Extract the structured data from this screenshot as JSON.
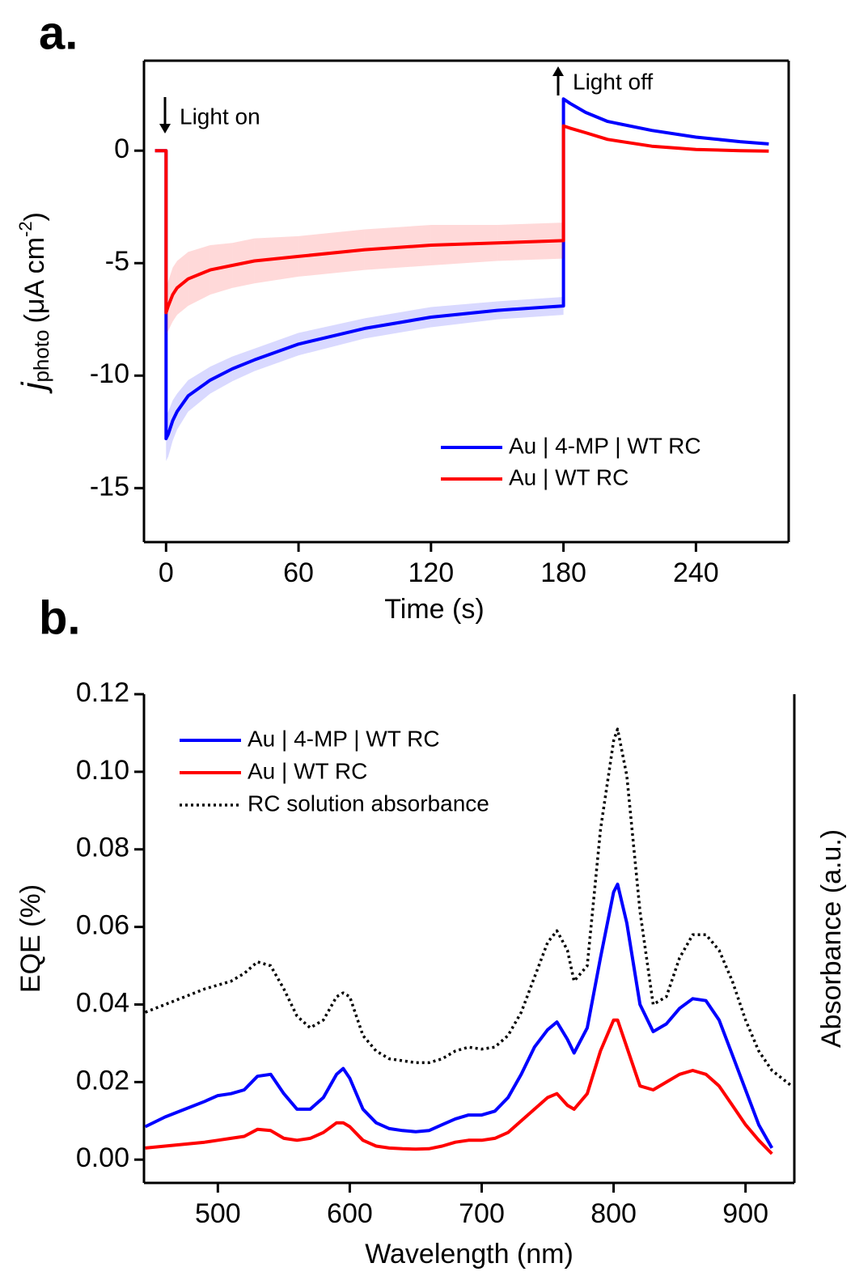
{
  "chart_data": [
    {
      "type": "line",
      "panel_label": "a.",
      "xlabel": "Time (s)",
      "ylabel": {
        "italic": "j",
        "sub": "photo",
        "text": "(μA cm",
        "sup": "-2",
        "close": ")"
      },
      "annotations": [
        "Light on",
        "Light off"
      ],
      "x": [
        -5,
        -2,
        0,
        0,
        1,
        3,
        5,
        10,
        20,
        30,
        40,
        60,
        90,
        120,
        150,
        180,
        180,
        183,
        190,
        200,
        220,
        240,
        260,
        273
      ],
      "series": [
        {
          "name": "Au | 4-MP | WT RC",
          "color": "#0000ff",
          "values": [
            0,
            0,
            0,
            -12.8,
            -12.6,
            -12.0,
            -11.6,
            -10.9,
            -10.2,
            -9.7,
            -9.3,
            -8.6,
            -7.9,
            -7.4,
            -7.1,
            -6.9,
            2.3,
            2.1,
            1.7,
            1.3,
            0.9,
            0.6,
            0.4,
            0.3
          ],
          "errors": [
            null,
            null,
            null,
            1.0,
            1.0,
            0.9,
            0.8,
            0.7,
            0.6,
            0.55,
            0.5,
            0.5,
            0.45,
            0.45,
            0.4,
            0.4,
            null,
            null,
            null,
            null,
            null,
            null,
            null,
            null
          ]
        },
        {
          "name": "Au | WT RC",
          "color": "#ff0000",
          "values": [
            0,
            0,
            0,
            -7.2,
            -6.9,
            -6.4,
            -6.1,
            -5.7,
            -5.3,
            -5.1,
            -4.9,
            -4.7,
            -4.4,
            -4.2,
            -4.1,
            -4.0,
            1.1,
            1.0,
            0.8,
            0.5,
            0.2,
            0.05,
            0.0,
            -0.02
          ],
          "errors": [
            null,
            null,
            null,
            1.0,
            1.1,
            1.2,
            1.2,
            1.2,
            1.1,
            1.0,
            1.0,
            0.9,
            0.9,
            0.9,
            0.8,
            0.8,
            null,
            null,
            null,
            null,
            null,
            null,
            null,
            null
          ]
        }
      ],
      "xlim": [
        -10,
        282
      ],
      "ylim": [
        -17.4,
        4
      ],
      "xticks": [
        0,
        60,
        120,
        180,
        240
      ],
      "yticks": [
        -15,
        -10,
        -5,
        0
      ],
      "box": true
    },
    {
      "type": "line",
      "panel_label": "b.",
      "xlabel": "Wavelength (nm)",
      "ylabel": "EQE (%)",
      "y2label": "Absorbance (a.u.)",
      "x": [
        445,
        460,
        475,
        490,
        500,
        510,
        520,
        530,
        540,
        550,
        560,
        570,
        580,
        590,
        595,
        600,
        610,
        620,
        630,
        640,
        650,
        660,
        670,
        680,
        690,
        700,
        710,
        720,
        730,
        740,
        750,
        757,
        765,
        770,
        780,
        790,
        800,
        803,
        810,
        820,
        830,
        840,
        850,
        860,
        870,
        880,
        890,
        900,
        910,
        920,
        935
      ],
      "series": [
        {
          "name": "Au | 4-MP | WT RC",
          "color": "#0000ff",
          "values": [
            0.0085,
            0.011,
            0.013,
            0.015,
            0.0165,
            0.017,
            0.018,
            0.0215,
            0.022,
            0.017,
            0.013,
            0.013,
            0.016,
            0.022,
            0.0235,
            0.021,
            0.013,
            0.0095,
            0.008,
            0.0075,
            0.0072,
            0.0075,
            0.009,
            0.0105,
            0.0115,
            0.0115,
            0.0125,
            0.016,
            0.022,
            0.029,
            0.0335,
            0.0355,
            0.031,
            0.0275,
            0.034,
            0.052,
            0.069,
            0.071,
            0.061,
            0.04,
            0.033,
            0.035,
            0.039,
            0.0415,
            0.041,
            0.036,
            0.027,
            0.018,
            0.009,
            0.003,
            null
          ]
        },
        {
          "name": "Au | WT RC",
          "color": "#ff0000",
          "values": [
            0.003,
            0.0035,
            0.004,
            0.0045,
            0.005,
            0.0055,
            0.006,
            0.0078,
            0.0075,
            0.0055,
            0.005,
            0.0055,
            0.007,
            0.0095,
            0.0095,
            0.0085,
            0.005,
            0.0035,
            0.003,
            0.0028,
            0.0027,
            0.0028,
            0.0035,
            0.0045,
            0.005,
            0.005,
            0.0055,
            0.007,
            0.01,
            0.013,
            0.016,
            0.017,
            0.014,
            0.013,
            0.017,
            0.028,
            0.036,
            0.036,
            0.029,
            0.019,
            0.018,
            0.02,
            0.022,
            0.023,
            0.022,
            0.019,
            0.014,
            0.009,
            0.005,
            0.0015,
            null
          ]
        },
        {
          "name": "RC solution absorbance",
          "color": "#000000",
          "dash": "dotted",
          "axis": "y2",
          "values": [
            0.038,
            0.04,
            0.042,
            0.044,
            0.045,
            0.046,
            0.048,
            0.051,
            0.05,
            0.044,
            0.037,
            0.034,
            0.036,
            0.042,
            0.043,
            0.042,
            0.032,
            0.028,
            0.026,
            0.0255,
            0.025,
            0.025,
            0.026,
            0.028,
            0.029,
            0.0285,
            0.029,
            0.032,
            0.038,
            0.047,
            0.056,
            0.059,
            0.054,
            0.046,
            0.05,
            0.085,
            0.108,
            0.111,
            0.099,
            0.064,
            0.04,
            0.042,
            0.052,
            0.058,
            0.058,
            0.054,
            0.046,
            0.036,
            0.028,
            0.023,
            0.019
          ]
        }
      ],
      "xlim": [
        444,
        937
      ],
      "ylim": [
        -0.006,
        0.12
      ],
      "y2lim": [
        -0.006,
        0.12
      ],
      "xticks": [
        500,
        600,
        700,
        800,
        900
      ],
      "yticks": [
        {
          "value": 0,
          "label": "0.00"
        },
        0.02,
        0.04,
        0.06,
        0.08,
        {
          "value": 0.1,
          "label": "0.10"
        },
        0.12
      ],
      "box": false
    }
  ]
}
